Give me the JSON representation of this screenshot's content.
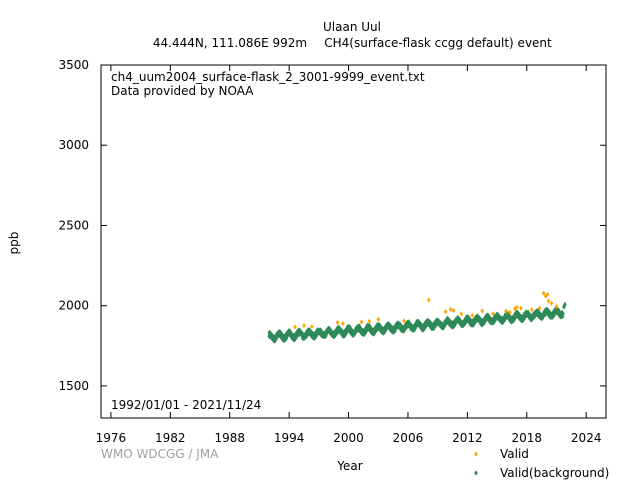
{
  "chart_data": {
    "type": "scatter",
    "title": "Ulaan Uul",
    "subtitle_left": "44.444N, 111.086E 992m",
    "subtitle_right": "CH4(surface-flask ccgg default) event",
    "file_label": "ch4_uum2004_surface-flask_2_3001-9999_event.txt",
    "provider_label": "Data provided by NOAA",
    "date_range_label": "1992/01/01 - 2021/11/24",
    "credit": "WMO WDCGG / JMA",
    "xlabel": "Year",
    "ylabel": "ppb",
    "xlim": [
      1975,
      2026
    ],
    "ylim": [
      1300,
      3500
    ],
    "x_ticks": [
      1976,
      1982,
      1988,
      1994,
      2000,
      2006,
      2012,
      2018,
      2024
    ],
    "y_ticks": [
      1500,
      2000,
      2500,
      3000,
      3500
    ],
    "grid": false,
    "legend_position": "bottom-right",
    "series": [
      {
        "name": "Valid",
        "color": "#ffa500",
        "marker": "diamond",
        "points": [
          [
            1994.6,
            1868
          ],
          [
            1995.5,
            1876
          ],
          [
            1996.3,
            1870
          ],
          [
            1998.9,
            1895
          ],
          [
            1999.4,
            1888
          ],
          [
            2001.3,
            1898
          ],
          [
            2002.1,
            1902
          ],
          [
            2003.0,
            1915
          ],
          [
            2005.6,
            1905
          ],
          [
            2008.1,
            2035
          ],
          [
            2009.8,
            1962
          ],
          [
            2010.3,
            1978
          ],
          [
            2010.6,
            1970
          ],
          [
            2011.4,
            1948
          ],
          [
            2012.5,
            1940
          ],
          [
            2013.5,
            1968
          ],
          [
            2014.6,
            1950
          ],
          [
            2015.9,
            1966
          ],
          [
            2016.3,
            1958
          ],
          [
            2016.8,
            1980
          ],
          [
            2017.0,
            1990
          ],
          [
            2017.4,
            1985
          ],
          [
            2018.5,
            1975
          ],
          [
            2019.3,
            1985
          ],
          [
            2019.7,
            2078
          ],
          [
            2019.9,
            2060
          ],
          [
            2020.1,
            2070
          ],
          [
            2020.2,
            2030
          ],
          [
            2020.5,
            2015
          ],
          [
            2021.0,
            1995
          ]
        ]
      },
      {
        "name": "Valid(background)",
        "color": "#2e8b57",
        "marker": "diamond",
        "trend": {
          "start_year": 1992.0,
          "end_year": 2021.9,
          "start_value": 1806,
          "end_value": 1960,
          "seasonal_amplitude": 16,
          "noise": 14
        }
      }
    ]
  }
}
